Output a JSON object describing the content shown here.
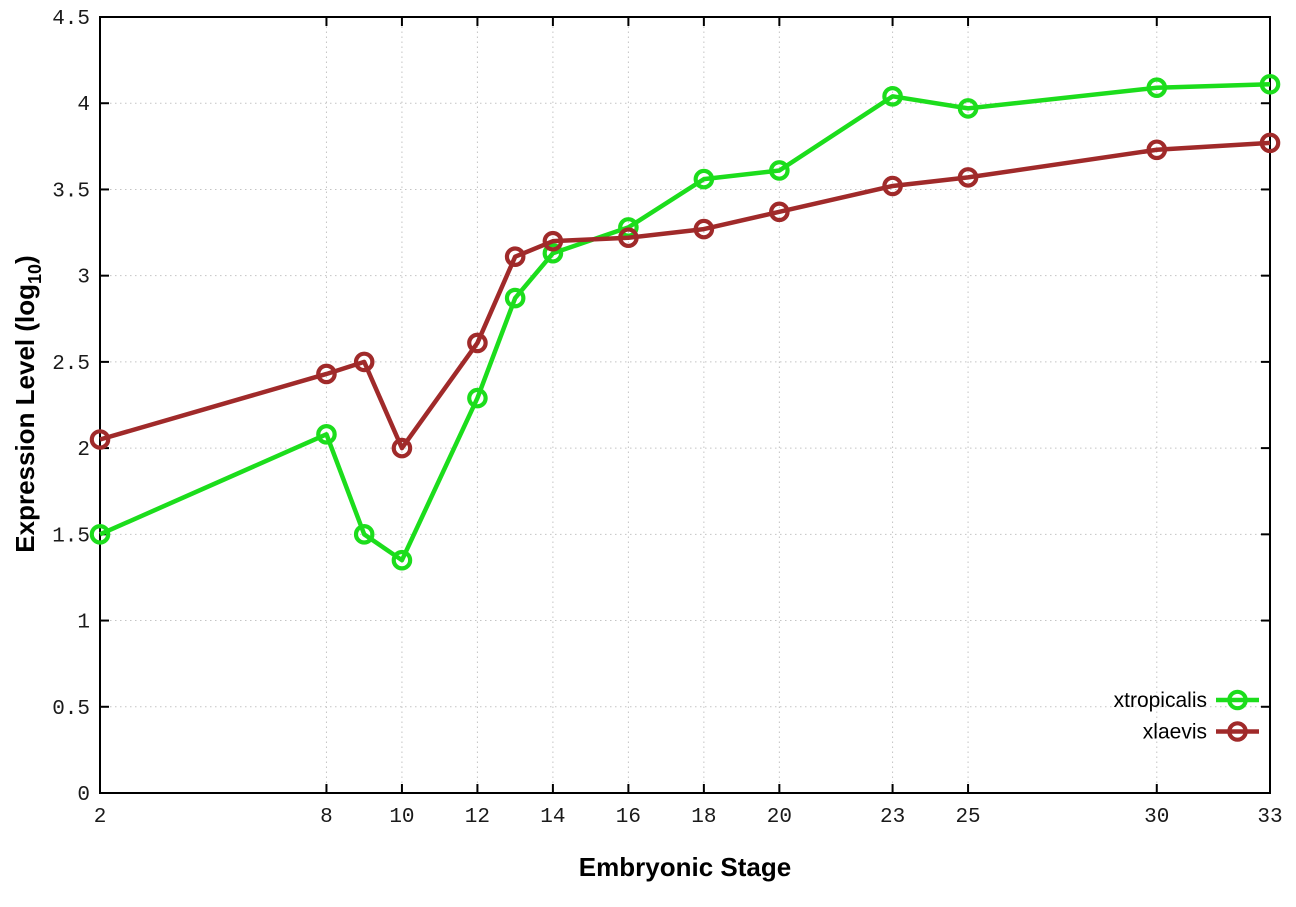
{
  "figure": {
    "background": "#ffffff",
    "border_color": "#000000",
    "grid_color": "#c4c4c4",
    "tick_label_color": "#1a1a1a"
  },
  "chart_data": {
    "type": "line",
    "title": "",
    "xlabel": "Embryonic Stage",
    "ylabel": "Expression Level (log10)",
    "ylabel_parts": {
      "main": "Expression Level (log",
      "sub": "10",
      "suffix": ")"
    },
    "x": [
      2,
      8,
      9,
      10,
      12,
      13,
      14,
      16,
      18,
      20,
      23,
      25,
      30,
      33
    ],
    "xticks": [
      2,
      8,
      10,
      12,
      14,
      16,
      18,
      20,
      23,
      25,
      30,
      33
    ],
    "yticks": [
      0,
      0.5,
      1,
      1.5,
      2,
      2.5,
      3,
      3.5,
      4,
      4.5
    ],
    "xlim": [
      2,
      33
    ],
    "ylim": [
      0,
      4.5
    ],
    "grid": true,
    "grid_style": "dotted",
    "legend_position": "bottom-right",
    "series": [
      {
        "name": "xtropicalis",
        "color": "#1cdd1c",
        "marker": "open-circle",
        "values": [
          1.5,
          2.08,
          1.5,
          1.35,
          2.29,
          2.87,
          3.13,
          3.28,
          3.56,
          3.61,
          4.04,
          3.97,
          4.09,
          4.11
        ]
      },
      {
        "name": "xlaevis",
        "color": "#a02a2a",
        "marker": "open-circle",
        "values": [
          2.05,
          2.43,
          2.5,
          2.0,
          2.61,
          3.11,
          3.2,
          3.22,
          3.27,
          3.37,
          3.52,
          3.57,
          3.73,
          3.77
        ]
      }
    ]
  }
}
